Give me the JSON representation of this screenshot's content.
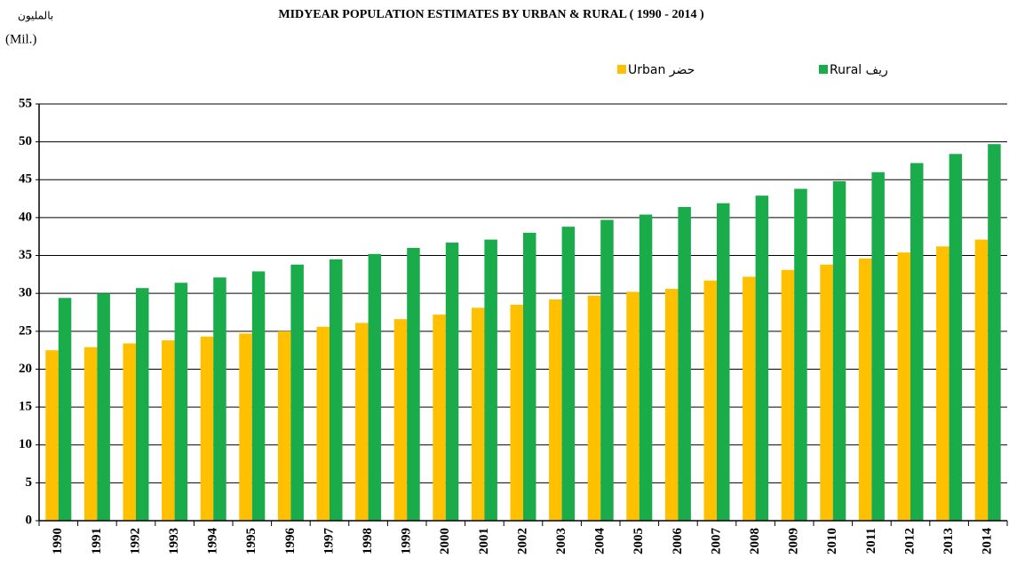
{
  "chart_data": {
    "type": "bar",
    "title": "MIDYEAR POPULATION ESTIMATES  BY URBAN & RURAL ( 1990 - 2014 )",
    "unit_arabic": "بالمليون",
    "unit": "(Mil.)",
    "categories": [
      "1990",
      "1991",
      "1992",
      "1993",
      "1994",
      "1995",
      "1996",
      "1997",
      "1998",
      "1999",
      "2000",
      "2001",
      "2002",
      "2003",
      "2004",
      "2005",
      "2006",
      "2007",
      "2008",
      "2009",
      "2010",
      "2011",
      "2012",
      "2013",
      "2014"
    ],
    "series": [
      {
        "name": "Urban حضر",
        "color": "#ffc000",
        "values": [
          22.5,
          22.9,
          23.4,
          23.8,
          24.3,
          24.7,
          25.0,
          25.6,
          26.1,
          26.6,
          27.2,
          28.1,
          28.5,
          29.2,
          29.7,
          30.2,
          30.6,
          31.7,
          32.2,
          33.1,
          33.8,
          34.6,
          35.4,
          36.2,
          37.1
        ]
      },
      {
        "name": "Rural ريف",
        "color": "#1aab4a",
        "values": [
          29.4,
          30.0,
          30.7,
          31.4,
          32.1,
          32.9,
          33.8,
          34.5,
          35.2,
          36.0,
          36.7,
          37.1,
          38.0,
          38.8,
          39.7,
          40.4,
          41.4,
          41.9,
          42.9,
          43.8,
          44.8,
          46.0,
          47.2,
          48.4,
          49.7
        ]
      }
    ],
    "ylim": [
      0,
      55
    ],
    "yticks": [
      0,
      5,
      10,
      15,
      20,
      25,
      30,
      35,
      40,
      45,
      50,
      55
    ],
    "grid": true,
    "legend": "top-right"
  }
}
